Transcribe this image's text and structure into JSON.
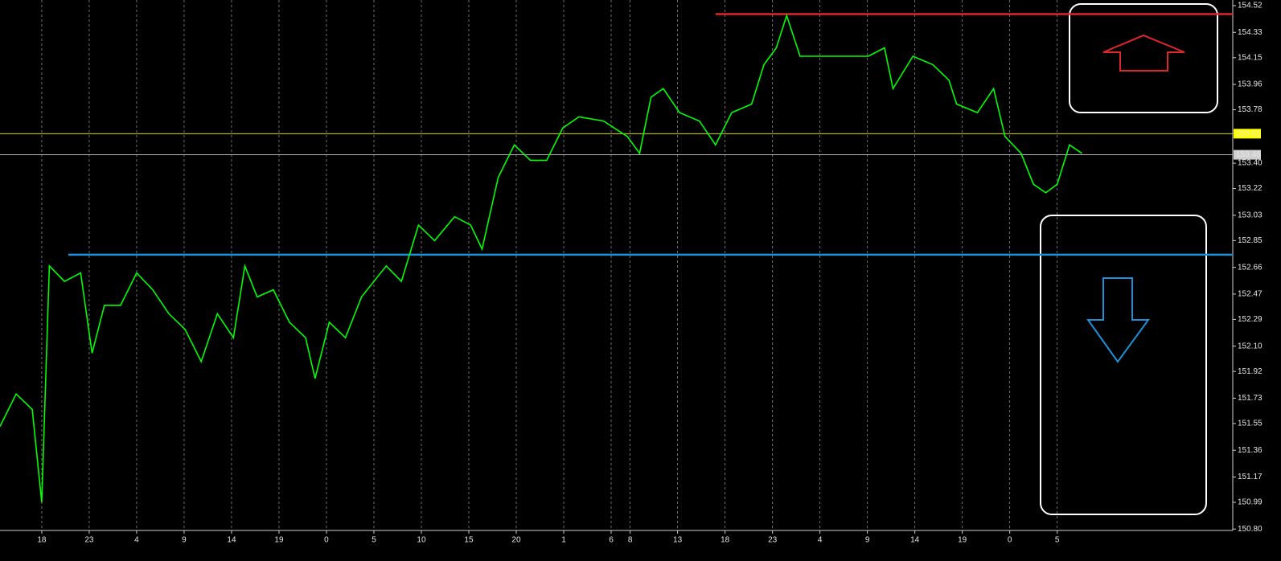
{
  "chart_data": {
    "type": "line",
    "x": [
      -4.4,
      -2.7,
      -1.0,
      0,
      0.8,
      2.4,
      4.1,
      5.3,
      6.6,
      8.3,
      10.0,
      11.7,
      13.4,
      15.1,
      16.8,
      18.5,
      20.2,
      21.4,
      22.7,
      24.4,
      26.1,
      27.8,
      28.8,
      30.3,
      32.0,
      33.7,
      36.3,
      37.9,
      39.7,
      41.4,
      43.5,
      45.2,
      46.4,
      48.1,
      49.8,
      51.5,
      53.2,
      54.9,
      56.6,
      59.2,
      61.7,
      63.0,
      64.2,
      65.5,
      67.2,
      69.3,
      71.0,
      72.7,
      74.8,
      76.1,
      77.4,
      78.5,
      79.9,
      82.0,
      84.6,
      87.1,
      88.8,
      89.7,
      91.8,
      93.9,
      95.6,
      96.4,
      98.6,
      100.3,
      101.5,
      103.2,
      104.5,
      105.8,
      107.0,
      108.3,
      109.6
    ],
    "series": [
      {
        "color": "#00ff00",
        "values": [
          151.53,
          151.76,
          151.65,
          150.99,
          152.67,
          152.56,
          152.62,
          152.05,
          152.39,
          152.39,
          152.62,
          152.5,
          152.33,
          152.22,
          151.99,
          152.33,
          152.16,
          152.67,
          152.45,
          152.5,
          152.27,
          152.16,
          151.87,
          152.27,
          152.16,
          152.45,
          152.67,
          152.56,
          152.96,
          152.85,
          153.02,
          152.96,
          152.79,
          153.3,
          153.53,
          153.42,
          153.42,
          153.65,
          153.73,
          153.7,
          153.59,
          153.47,
          153.87,
          153.93,
          153.76,
          153.7,
          153.53,
          153.76,
          153.82,
          154.1,
          154.22,
          154.45,
          154.16,
          154.16,
          154.16,
          154.16,
          154.22,
          153.93,
          154.16,
          154.1,
          153.99,
          153.82,
          153.76,
          153.93,
          153.59,
          153.47,
          153.25,
          153.19,
          153.25,
          153.53,
          153.47
        ]
      }
    ],
    "xlim": [
      -4.4,
      125.5
    ],
    "xticks": [
      {
        "value": 0,
        "label": "18"
      },
      {
        "value": 5,
        "label": "23"
      },
      {
        "value": 10,
        "label": "4"
      },
      {
        "value": 15,
        "label": "9"
      },
      {
        "value": 20,
        "label": "14"
      },
      {
        "value": 25,
        "label": "19"
      },
      {
        "value": 30,
        "label": "0"
      },
      {
        "value": 35,
        "label": "5"
      },
      {
        "value": 40,
        "label": "10"
      },
      {
        "value": 45,
        "label": "15"
      },
      {
        "value": 50,
        "label": "20"
      },
      {
        "value": 55,
        "label": "1"
      },
      {
        "value": 60,
        "label": "6"
      },
      {
        "value": 62,
        "label": "8"
      },
      {
        "value": 67,
        "label": "13"
      },
      {
        "value": 72,
        "label": "18"
      },
      {
        "value": 77,
        "label": "23"
      },
      {
        "value": 82,
        "label": "4"
      },
      {
        "value": 87,
        "label": "9"
      },
      {
        "value": 92,
        "label": "14"
      },
      {
        "value": 97,
        "label": "19"
      },
      {
        "value": 102,
        "label": "0"
      },
      {
        "value": 107,
        "label": "5"
      }
    ],
    "ylim": [
      150.79,
      154.56
    ],
    "yticks": [
      154.52,
      154.33,
      154.15,
      153.96,
      153.78,
      {
        "value": 153.4,
        "label": "153.40"
      },
      153.22,
      153.03,
      152.85,
      152.66,
      152.47,
      152.29,
      {
        "value": 152.1,
        "label": "152.10"
      },
      151.92,
      151.73,
      151.55,
      151.36,
      151.17,
      150.99,
      {
        "value": 150.8,
        "label": "150.80"
      }
    ],
    "levels": [
      {
        "value": 154.46,
        "color": "#e0262b",
        "start": 71.0
      },
      {
        "value": 152.75,
        "color": "#1e90d8",
        "start": 2.8
      }
    ],
    "price_lines": [
      {
        "value": 153.61,
        "color": "#ffff00"
      },
      {
        "value": 153.46,
        "color": "#cfcfcf"
      }
    ],
    "grid": true
  }
}
